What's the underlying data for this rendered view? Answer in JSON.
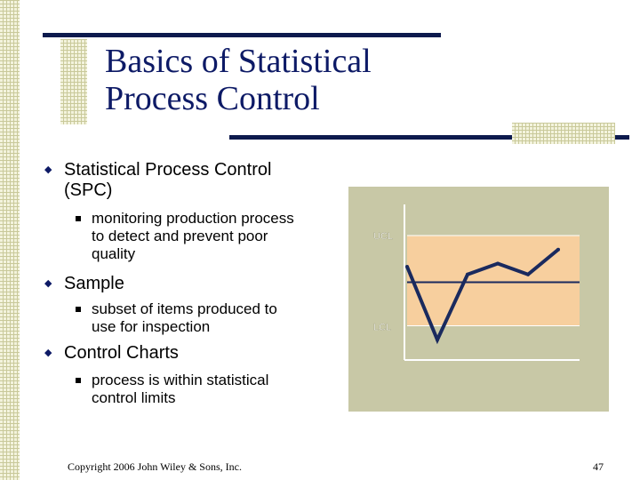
{
  "title_line1": "Basics of Statistical",
  "title_line2": "Process Control",
  "bullets": [
    {
      "text_line1": "Statistical Process Control",
      "text_line2": "(SPC)"
    },
    {
      "text_line1": "Sample"
    },
    {
      "text_line1": "Control Charts"
    }
  ],
  "sub_bullets": [
    {
      "line1": "monitoring production process",
      "line2": "to detect and prevent poor",
      "line3": "quality"
    },
    {
      "line1": "subset of items produced to",
      "line2": "use for inspection"
    },
    {
      "line1": "process is within statistical",
      "line2": "control limits"
    }
  ],
  "chart": {
    "ucl_label": "UCL",
    "lcl_label": "LCL",
    "band_color": "#f7cf9e",
    "line_color": "#1a2a5e"
  },
  "chart_data": {
    "type": "line",
    "title": "",
    "xlabel": "",
    "ylabel": "",
    "ylim": [
      0,
      1
    ],
    "ucl": 0.8,
    "center": 0.5,
    "lcl": 0.22,
    "series": [
      {
        "values": [
          0.6,
          0.13,
          0.55,
          0.62,
          0.55,
          0.71
        ]
      }
    ]
  },
  "footer": "Copyright 2006 John Wiley & Sons, Inc.",
  "page_number": "47"
}
